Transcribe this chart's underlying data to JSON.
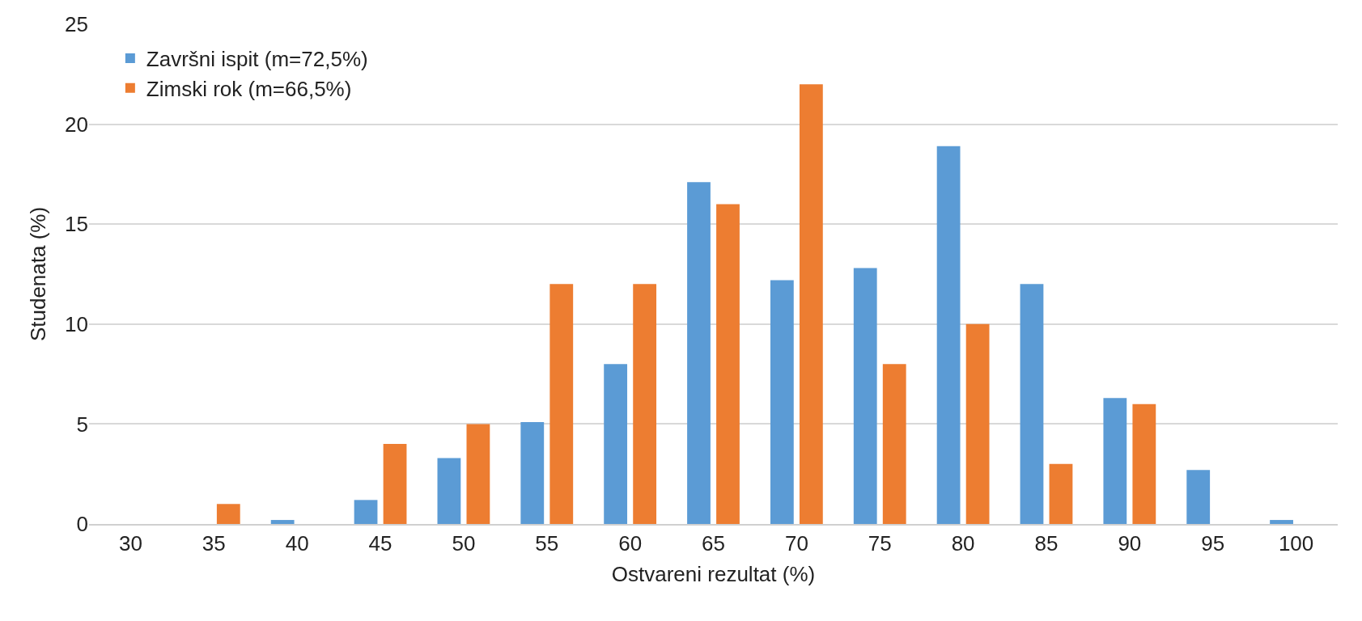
{
  "chart_data": {
    "type": "bar",
    "xlabel": "Ostvareni rezultat (%)",
    "ylabel": "Studenata (%)",
    "categories": [
      "30",
      "35",
      "40",
      "45",
      "50",
      "55",
      "60",
      "65",
      "70",
      "75",
      "80",
      "85",
      "90",
      "95",
      "100"
    ],
    "series": [
      {
        "name": "Završni ispit (m=72,5%)",
        "color": "#5b9bd5",
        "values": [
          0,
          0,
          0.2,
          1.2,
          3.3,
          5.1,
          8.0,
          17.1,
          12.2,
          12.8,
          18.9,
          12.0,
          6.3,
          2.7,
          0.2
        ]
      },
      {
        "name": "Zimski rok (m=66,5%)",
        "color": "#ed7d31",
        "values": [
          0,
          1.0,
          0,
          4.0,
          5.0,
          12.0,
          12.0,
          16.0,
          22.0,
          8.0,
          10.0,
          3.0,
          6.0,
          0,
          0
        ]
      }
    ],
    "ylim": [
      0,
      25
    ],
    "yticks": [
      0,
      5,
      10,
      15,
      20,
      25
    ],
    "grid": "y",
    "legend": "top left"
  }
}
